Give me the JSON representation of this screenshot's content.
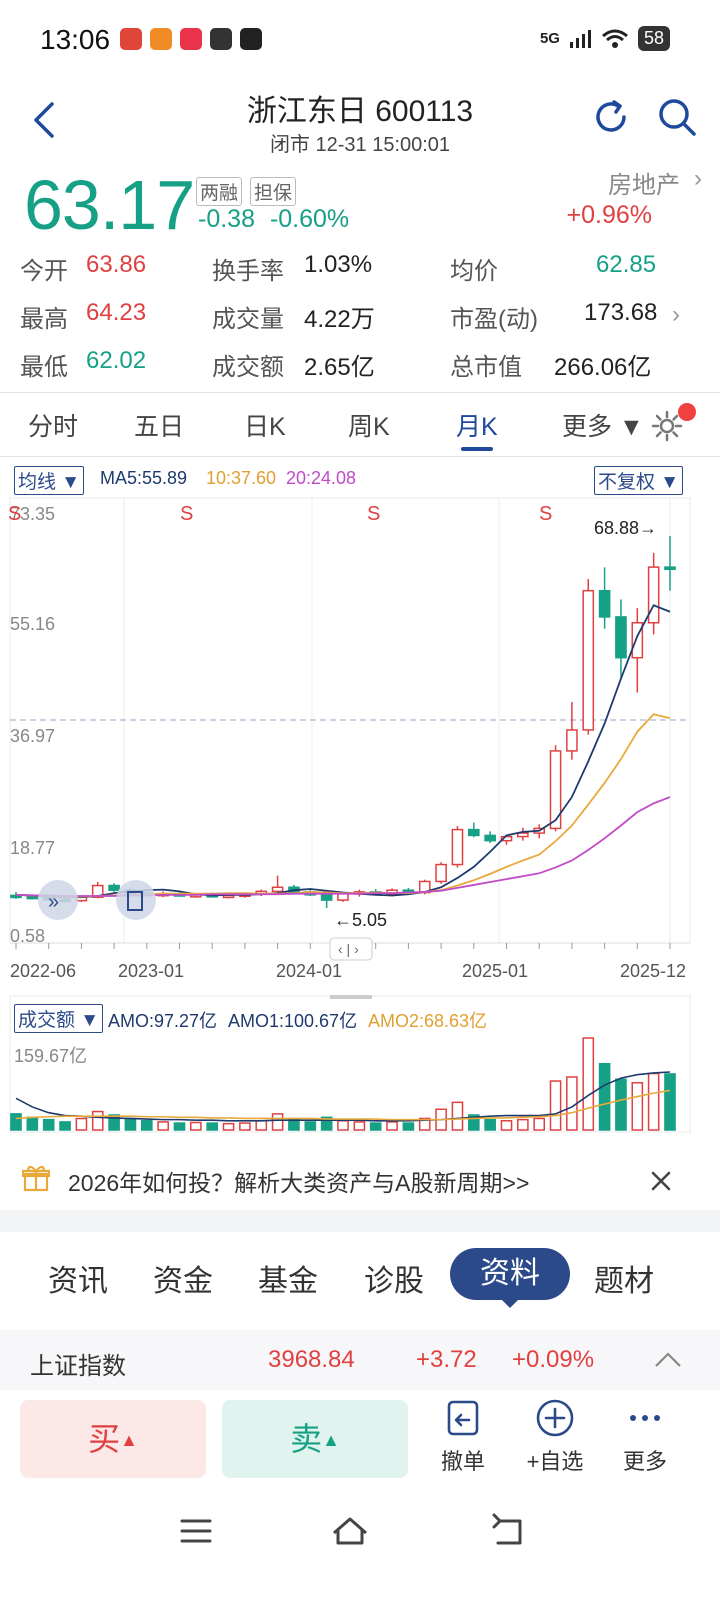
{
  "status": {
    "time": "13:06",
    "network": "5G",
    "battery": "58"
  },
  "header": {
    "title": "浙江东日 600113",
    "subtitle": "闭市 12-31 15:00:01"
  },
  "quote": {
    "price": "63.17",
    "tags": [
      "两融",
      "担保"
    ],
    "change": "-0.38",
    "change_pct": "-0.60%",
    "sector": "房地产",
    "sector_change": "+0.96%"
  },
  "stats": [
    {
      "label": "今开",
      "value": "63.86",
      "color": "red"
    },
    {
      "label": "换手率",
      "value": "1.03%",
      "color": "dark"
    },
    {
      "label": "均价",
      "value": "62.85",
      "color": "green"
    },
    {
      "label": "最高",
      "value": "64.23",
      "color": "red"
    },
    {
      "label": "成交量",
      "value": "4.22万",
      "color": "dark"
    },
    {
      "label": "市盈(动)",
      "value": "173.68",
      "color": "dark"
    },
    {
      "label": "最低",
      "value": "62.02",
      "color": "green"
    },
    {
      "label": "成交额",
      "value": "2.65亿",
      "color": "dark"
    },
    {
      "label": "总市值",
      "value": "266.06亿",
      "color": "dark"
    }
  ],
  "tabs": [
    {
      "label": "分时"
    },
    {
      "label": "五日"
    },
    {
      "label": "日K"
    },
    {
      "label": "周K"
    },
    {
      "label": "月K"
    },
    {
      "label": "更多 ▼"
    }
  ],
  "chart": {
    "ma_dropdown": "均线 ▼",
    "ma5": "MA5:55.89",
    "ma10": "10:37.60",
    "ma20": "20:24.08",
    "adjust_dropdown": "不复权 ▼",
    "y_ticks": [
      "73.35",
      "55.16",
      "36.97",
      "18.77",
      "0.58"
    ],
    "x_ticks": [
      "2022-06",
      "2023-01",
      "2024-01",
      "2025-01",
      "2025-12"
    ],
    "s_marker": "S",
    "max_label": "68.88→",
    "min_label": "←5.05",
    "scroll_handle": "‹ | ›",
    "vol_dropdown": "成交额 ▼",
    "amo": "AMO:97.27亿",
    "amo1": "AMO1:100.67亿",
    "amo2": "AMO2:68.63亿",
    "vol_max": "159.67亿",
    "colors": {
      "up": "#e04040",
      "down": "#16a085",
      "ma5": "#1f3a6e",
      "ma10": "#e8a93a",
      "ma20": "#c04ac8"
    }
  },
  "chart_data": {
    "type": "candlestick",
    "period": "monthly",
    "ylim": [
      0.58,
      73.35
    ],
    "x_start": "2022-06",
    "x_end": "2025-12",
    "candles": [
      [
        7.2,
        7.8,
        6.6,
        7.0
      ],
      [
        7.0,
        7.4,
        6.5,
        6.8
      ],
      [
        6.8,
        7.3,
        6.2,
        6.5
      ],
      [
        6.5,
        7.0,
        6.0,
        6.3
      ],
      [
        6.3,
        7.1,
        6.1,
        6.9
      ],
      [
        6.9,
        9.5,
        6.7,
        8.9
      ],
      [
        8.9,
        9.3,
        7.8,
        8.1
      ],
      [
        8.1,
        8.6,
        7.4,
        7.6
      ],
      [
        7.6,
        8.0,
        7.0,
        7.3
      ],
      [
        7.3,
        7.9,
        6.9,
        7.5
      ],
      [
        7.5,
        7.8,
        7.0,
        7.1
      ],
      [
        7.1,
        7.6,
        6.8,
        7.3
      ],
      [
        7.3,
        7.7,
        6.9,
        7.0
      ],
      [
        7.0,
        7.5,
        6.7,
        7.2
      ],
      [
        7.2,
        7.6,
        6.8,
        7.4
      ],
      [
        7.4,
        8.2,
        7.1,
        7.9
      ],
      [
        7.9,
        10.6,
        7.6,
        8.6
      ],
      [
        8.6,
        9.0,
        7.5,
        7.8
      ],
      [
        7.8,
        8.2,
        7.1,
        7.3
      ],
      [
        7.3,
        7.6,
        5.05,
        6.4
      ],
      [
        6.4,
        7.8,
        6.1,
        7.5
      ],
      [
        7.5,
        8.2,
        7.0,
        7.8
      ],
      [
        7.8,
        8.3,
        7.2,
        7.4
      ],
      [
        7.4,
        8.4,
        7.0,
        8.1
      ],
      [
        8.1,
        8.5,
        7.5,
        7.7
      ],
      [
        7.7,
        9.9,
        7.4,
        9.6
      ],
      [
        9.6,
        12.9,
        9.2,
        12.5
      ],
      [
        12.5,
        19.1,
        12.0,
        18.5
      ],
      [
        18.5,
        19.7,
        17.2,
        17.5
      ],
      [
        17.5,
        18.2,
        16.2,
        16.6
      ],
      [
        16.6,
        17.6,
        15.9,
        17.3
      ],
      [
        17.3,
        18.8,
        16.6,
        17.9
      ],
      [
        17.9,
        19.4,
        17.0,
        18.7
      ],
      [
        18.7,
        33.0,
        18.2,
        32.0
      ],
      [
        32.0,
        40.4,
        30.5,
        35.6
      ],
      [
        35.6,
        61.5,
        34.8,
        59.5
      ],
      [
        59.5,
        63.5,
        53.0,
        55.0
      ],
      [
        55.0,
        58.0,
        44.5,
        48.0
      ],
      [
        48.0,
        56.5,
        42.0,
        54.0
      ],
      [
        54.0,
        66.0,
        52.0,
        63.55
      ],
      [
        63.55,
        68.88,
        59.5,
        63.17
      ]
    ],
    "ma5": [
      7.3,
      7.2,
      7.0,
      6.9,
      6.9,
      7.1,
      7.6,
      7.9,
      8.1,
      8.2,
      7.9,
      7.4,
      7.2,
      7.3,
      7.3,
      7.4,
      7.6,
      8.1,
      8.3,
      8.0,
      7.7,
      7.5,
      7.3,
      7.2,
      7.4,
      7.8,
      8.6,
      10.2,
      12.1,
      14.7,
      17.5,
      18.1,
      18.3,
      20.1,
      24.1,
      30.2,
      36.7,
      44.4,
      51.7,
      57.0,
      55.89
    ],
    "ma10": [
      7.3,
      7.2,
      7.1,
      7.0,
      7.0,
      7.1,
      7.2,
      7.3,
      7.4,
      7.5,
      7.5,
      7.5,
      7.5,
      7.6,
      7.6,
      7.5,
      7.5,
      7.6,
      7.8,
      7.7,
      7.6,
      7.6,
      7.7,
      7.6,
      7.6,
      7.8,
      8.1,
      8.9,
      9.8,
      10.9,
      12.1,
      13.2,
      14.2,
      16.5,
      19.2,
      22.8,
      26.5,
      30.6,
      35.3,
      38.3,
      37.6
    ],
    "ma20": [
      7.3,
      7.2,
      7.2,
      7.1,
      7.1,
      7.1,
      7.1,
      7.2,
      7.2,
      7.3,
      7.3,
      7.3,
      7.4,
      7.4,
      7.4,
      7.4,
      7.4,
      7.5,
      7.5,
      7.5,
      7.5,
      7.5,
      7.6,
      7.6,
      7.7,
      7.8,
      8.0,
      8.5,
      9.0,
      9.5,
      10.0,
      10.5,
      11.0,
      12.0,
      13.2,
      15.0,
      17.0,
      19.2,
      21.5,
      23.0,
      24.08
    ],
    "amo_ylim": [
      0,
      159.67
    ],
    "amo": [
      28,
      22,
      18,
      14,
      20,
      32,
      26,
      18,
      16,
      14,
      12,
      13,
      12,
      11,
      12,
      16,
      28,
      18,
      14,
      22,
      16,
      14,
      12,
      14,
      12,
      20,
      36,
      48,
      26,
      18,
      16,
      18,
      20,
      85,
      92,
      159.67,
      115,
      88,
      82,
      98,
      97.27
    ],
    "amo1": [
      55,
      40,
      30,
      25,
      24,
      22,
      21,
      20,
      19,
      18,
      18,
      17,
      17,
      16,
      16,
      16,
      17,
      17,
      17,
      17,
      17,
      17,
      16,
      16,
      16,
      17,
      18,
      20,
      22,
      24,
      25,
      25,
      25,
      28,
      40,
      60,
      78,
      90,
      96,
      99,
      100.67
    ],
    "amo2": [
      20,
      22,
      23,
      24,
      24,
      24,
      24,
      24,
      23,
      23,
      22,
      22,
      21,
      21,
      20,
      20,
      20,
      20,
      20,
      19,
      19,
      19,
      19,
      18,
      18,
      18,
      18,
      19,
      20,
      21,
      21,
      22,
      23,
      25,
      30,
      38,
      45,
      52,
      58,
      64,
      68.63
    ]
  },
  "banner": {
    "text": "2026年如何投？解析大类资产与A股新周期>>"
  },
  "info_tabs": [
    {
      "label": "资讯"
    },
    {
      "label": "资金"
    },
    {
      "label": "基金"
    },
    {
      "label": "诊股"
    },
    {
      "label": "资料"
    },
    {
      "label": "题材"
    }
  ],
  "index_bar": {
    "name": "上证指数",
    "value": "3968.84",
    "change": "+3.72",
    "pct": "+0.09%"
  },
  "trade": {
    "buy": "买",
    "sell": "卖",
    "cancel": "撤单",
    "watch": "+自选",
    "more": "更多"
  }
}
